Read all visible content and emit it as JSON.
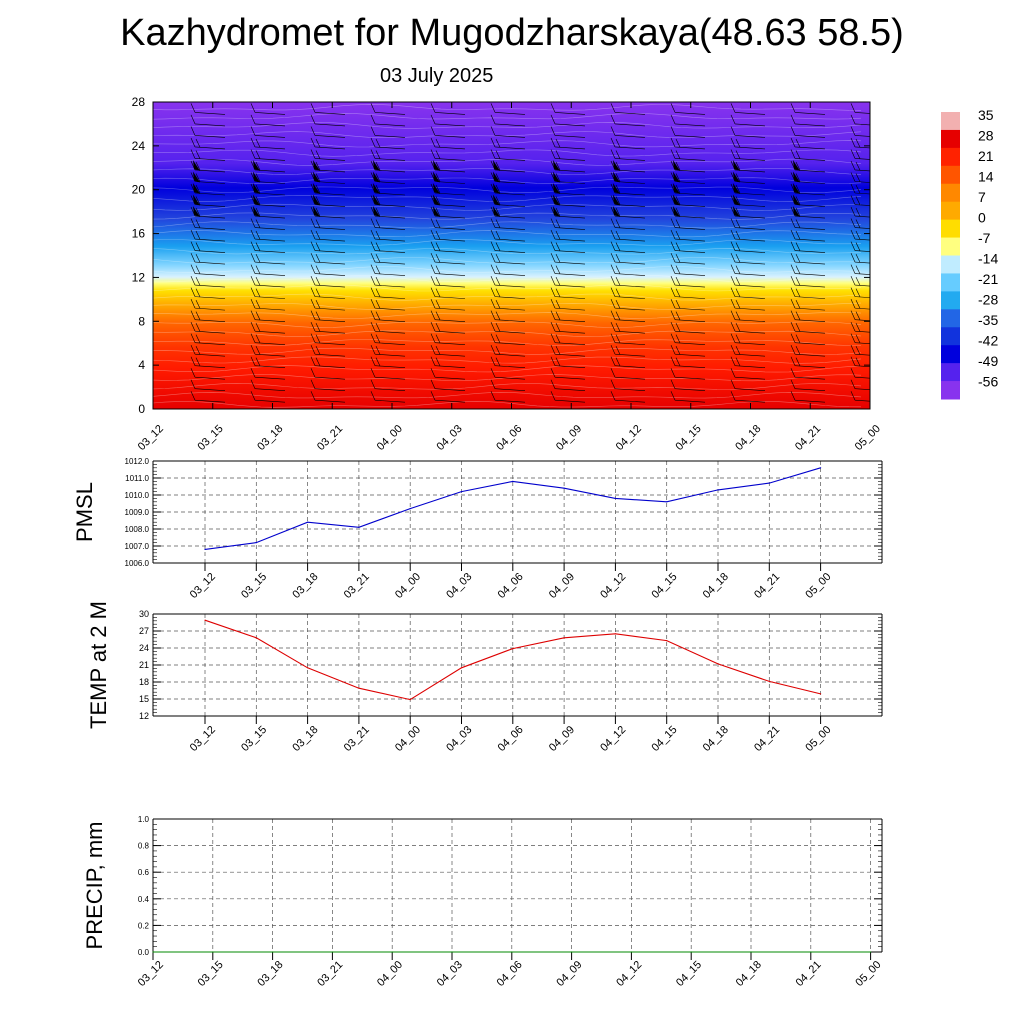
{
  "title": "Kazhydromet for Mugodzharskaya(48.63 58.5)",
  "subtitle": "03 July 2025",
  "colorbar": {
    "labels": [
      "35",
      "28",
      "21",
      "14",
      "7",
      "0",
      "-7",
      "-14",
      "-21",
      "-28",
      "-35",
      "-42",
      "-49",
      "-56"
    ]
  },
  "chart_data": [
    {
      "type": "heatmap",
      "name": "upper-air cross section",
      "x": [
        "03_12",
        "03_15",
        "03_18",
        "03_21",
        "04_00",
        "04_03",
        "04_06",
        "04_09",
        "04_12",
        "04_15",
        "04_18",
        "04_21",
        "05_00"
      ],
      "y_ticks": [
        "0",
        "4",
        "8",
        "12",
        "16",
        "20",
        "24",
        "28"
      ],
      "ylim": [
        0,
        28
      ],
      "color_stops": [
        {
          "value": 35,
          "color": "#f2b0b0"
        },
        {
          "value": 30,
          "color": "#e60000"
        },
        {
          "value": 22,
          "color": "#ff2200"
        },
        {
          "value": 12,
          "color": "#ff6600"
        },
        {
          "value": 4,
          "color": "#ffaa00"
        },
        {
          "value": -3,
          "color": "#ffe000"
        },
        {
          "value": -8,
          "color": "#ffff80"
        },
        {
          "value": -12,
          "color": "#d9f2ff"
        },
        {
          "value": -20,
          "color": "#80d4ff"
        },
        {
          "value": -30,
          "color": "#1aa0f0"
        },
        {
          "value": -40,
          "color": "#2244dd"
        },
        {
          "value": -47,
          "color": "#0000dd"
        },
        {
          "value": -52,
          "color": "#5522ee"
        },
        {
          "value": -60,
          "color": "#8833ee"
        }
      ],
      "grid": false
    },
    {
      "type": "line",
      "ylabel": "PMSL",
      "x": [
        "03_12",
        "03_15",
        "03_18",
        "03_21",
        "04_00",
        "04_03",
        "04_06",
        "04_09",
        "04_12",
        "04_15",
        "04_18",
        "04_21",
        "05_00"
      ],
      "values": [
        1006.8,
        1007.2,
        1008.4,
        1008.1,
        1009.2,
        1010.2,
        1010.8,
        1010.4,
        1009.8,
        1009.6,
        1010.3,
        1010.7,
        1011.6
      ],
      "ylim": [
        1006.0,
        1012.0
      ],
      "y_ticks": [
        "1006.0",
        "1007.0",
        "1008.0",
        "1009.0",
        "1010.0",
        "1011.0",
        "1012.0"
      ],
      "color": "#0000cc",
      "grid": true
    },
    {
      "type": "line",
      "ylabel": "TEMP at 2 M",
      "x": [
        "03_12",
        "03_15",
        "03_18",
        "03_21",
        "04_00",
        "04_03",
        "04_06",
        "04_09",
        "04_12",
        "04_15",
        "04_18",
        "04_21",
        "05_00"
      ],
      "values": [
        28.9,
        25.8,
        20.5,
        16.9,
        14.9,
        20.5,
        23.9,
        25.8,
        26.5,
        25.3,
        21.2,
        18.1,
        15.9
      ],
      "ylim": [
        12,
        30
      ],
      "y_ticks": [
        "12",
        "15",
        "18",
        "21",
        "24",
        "27",
        "30"
      ],
      "color": "#dd0000",
      "grid": true
    },
    {
      "type": "line",
      "ylabel": "PRECIP, mm",
      "x": [
        "03_12",
        "03_15",
        "03_18",
        "03_21",
        "04_00",
        "04_03",
        "04_06",
        "04_09",
        "04_12",
        "04_15",
        "04_18",
        "04_21",
        "05_00"
      ],
      "values": [
        0,
        0,
        0,
        0,
        0,
        0,
        0,
        0,
        0,
        0,
        0,
        0,
        0
      ],
      "ylim": [
        0.0,
        1.0
      ],
      "y_ticks": [
        "0.0",
        "0.2",
        "0.4",
        "0.6",
        "0.8",
        "1.0"
      ],
      "color": "#008800",
      "grid": true
    }
  ]
}
